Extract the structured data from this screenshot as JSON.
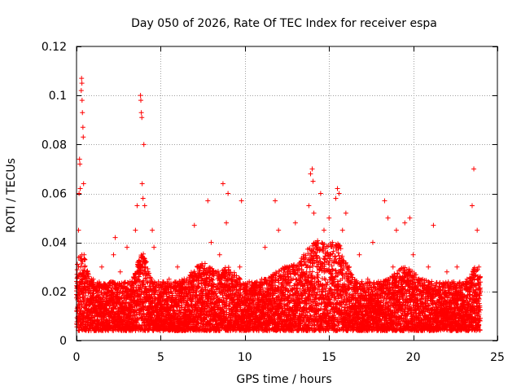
{
  "chart_data": {
    "type": "scatter",
    "title": "Day 050 of 2026, Rate Of TEC Index for receiver espa",
    "xlabel": "GPS time / hours",
    "ylabel": "ROTI / TECUs",
    "xlim": [
      0,
      25
    ],
    "ylim": [
      0,
      0.12
    ],
    "x_ticks": [
      0,
      5,
      10,
      15,
      20,
      25
    ],
    "x_tick_labels": [
      "0",
      "5",
      "10",
      "15",
      "20",
      "25"
    ],
    "y_ticks": [
      0,
      0.02,
      0.04,
      0.06,
      0.08,
      0.1,
      0.12
    ],
    "y_tick_labels": [
      "0",
      "0.02",
      "0.04",
      "0.06",
      "0.08",
      "0.1",
      "0.12"
    ],
    "grid": true,
    "marker": "+",
    "series": [
      {
        "name": "ROTI",
        "color": "#ff0000",
        "points": [
          [
            0.0,
            0.012
          ],
          [
            0.05,
            0.018
          ],
          [
            0.1,
            0.008
          ],
          [
            0.12,
            0.045
          ],
          [
            0.15,
            0.06
          ],
          [
            0.18,
            0.074
          ],
          [
            0.2,
            0.072
          ],
          [
            0.22,
            0.062
          ],
          [
            0.25,
            0.03
          ],
          [
            0.28,
            0.102
          ],
          [
            0.3,
            0.107
          ],
          [
            0.32,
            0.105
          ],
          [
            0.33,
            0.098
          ],
          [
            0.35,
            0.093
          ],
          [
            0.38,
            0.087
          ],
          [
            0.4,
            0.083
          ],
          [
            0.42,
            0.064
          ],
          [
            0.45,
            0.035
          ],
          [
            0.5,
            0.022
          ],
          [
            0.55,
            0.015
          ],
          [
            0.6,
            0.01
          ],
          [
            0.7,
            0.004
          ],
          [
            0.8,
            0.02
          ],
          [
            0.9,
            0.012
          ],
          [
            1.0,
            0.025
          ],
          [
            1.1,
            0.008
          ],
          [
            1.2,
            0.018
          ],
          [
            1.3,
            0.014
          ],
          [
            1.5,
            0.03
          ],
          [
            1.6,
            0.012
          ],
          [
            1.8,
            0.022
          ],
          [
            2.0,
            0.01
          ],
          [
            2.2,
            0.035
          ],
          [
            2.3,
            0.042
          ],
          [
            2.4,
            0.016
          ],
          [
            2.6,
            0.028
          ],
          [
            2.8,
            0.012
          ],
          [
            3.0,
            0.038
          ],
          [
            3.2,
            0.02
          ],
          [
            3.4,
            0.012
          ],
          [
            3.5,
            0.045
          ],
          [
            3.6,
            0.055
          ],
          [
            3.8,
            0.1
          ],
          [
            3.82,
            0.098
          ],
          [
            3.85,
            0.093
          ],
          [
            3.88,
            0.091
          ],
          [
            3.9,
            0.064
          ],
          [
            3.95,
            0.058
          ],
          [
            4.0,
            0.08
          ],
          [
            4.05,
            0.055
          ],
          [
            4.1,
            0.03
          ],
          [
            4.3,
            0.02
          ],
          [
            4.5,
            0.045
          ],
          [
            4.6,
            0.038
          ],
          [
            4.8,
            0.012
          ],
          [
            5.0,
            0.018
          ],
          [
            5.2,
            0.008
          ],
          [
            5.5,
            0.025
          ],
          [
            5.8,
            0.012
          ],
          [
            6.0,
            0.03
          ],
          [
            6.2,
            0.016
          ],
          [
            6.5,
            0.01
          ],
          [
            6.8,
            0.022
          ],
          [
            7.0,
            0.047
          ],
          [
            7.2,
            0.03
          ],
          [
            7.5,
            0.015
          ],
          [
            7.8,
            0.057
          ],
          [
            8.0,
            0.04
          ],
          [
            8.2,
            0.02
          ],
          [
            8.5,
            0.035
          ],
          [
            8.7,
            0.064
          ],
          [
            8.9,
            0.048
          ],
          [
            9.0,
            0.06
          ],
          [
            9.2,
            0.025
          ],
          [
            9.5,
            0.012
          ],
          [
            9.7,
            0.03
          ],
          [
            9.8,
            0.057
          ],
          [
            10.0,
            0.018
          ],
          [
            10.2,
            0.01
          ],
          [
            10.5,
            0.02
          ],
          [
            10.8,
            0.006
          ],
          [
            11.0,
            0.025
          ],
          [
            11.2,
            0.038
          ],
          [
            11.5,
            0.012
          ],
          [
            11.8,
            0.057
          ],
          [
            12.0,
            0.045
          ],
          [
            12.2,
            0.02
          ],
          [
            12.5,
            0.03
          ],
          [
            12.8,
            0.012
          ],
          [
            13.0,
            0.048
          ],
          [
            13.2,
            0.025
          ],
          [
            13.5,
            0.035
          ],
          [
            13.8,
            0.055
          ],
          [
            13.9,
            0.068
          ],
          [
            14.0,
            0.07
          ],
          [
            14.05,
            0.065
          ],
          [
            14.1,
            0.052
          ],
          [
            14.3,
            0.03
          ],
          [
            14.5,
            0.06
          ],
          [
            14.7,
            0.045
          ],
          [
            15.0,
            0.05
          ],
          [
            15.2,
            0.04
          ],
          [
            15.4,
            0.058
          ],
          [
            15.5,
            0.062
          ],
          [
            15.6,
            0.06
          ],
          [
            15.8,
            0.045
          ],
          [
            16.0,
            0.052
          ],
          [
            16.2,
            0.03
          ],
          [
            16.5,
            0.02
          ],
          [
            16.8,
            0.035
          ],
          [
            17.0,
            0.012
          ],
          [
            17.3,
            0.025
          ],
          [
            17.6,
            0.04
          ],
          [
            17.9,
            0.015
          ],
          [
            18.0,
            0.022
          ],
          [
            18.3,
            0.057
          ],
          [
            18.5,
            0.05
          ],
          [
            18.8,
            0.03
          ],
          [
            19.0,
            0.045
          ],
          [
            19.3,
            0.02
          ],
          [
            19.5,
            0.048
          ],
          [
            19.8,
            0.05
          ],
          [
            20.0,
            0.035
          ],
          [
            20.3,
            0.025
          ],
          [
            20.6,
            0.012
          ],
          [
            20.9,
            0.03
          ],
          [
            21.2,
            0.047
          ],
          [
            21.5,
            0.02
          ],
          [
            21.8,
            0.01
          ],
          [
            22.0,
            0.028
          ],
          [
            22.3,
            0.015
          ],
          [
            22.6,
            0.03
          ],
          [
            22.9,
            0.012
          ],
          [
            23.2,
            0.025
          ],
          [
            23.5,
            0.055
          ],
          [
            23.6,
            0.07
          ],
          [
            23.8,
            0.045
          ],
          [
            23.9,
            0.03
          ],
          [
            24.0,
            0.02
          ]
        ],
        "dense_band": {
          "x_range": [
            0,
            24
          ],
          "base_y": [
            0.004,
            0.024
          ],
          "bumps": [
            {
              "x": 0.3,
              "width": 0.4,
              "height": 0.012
            },
            {
              "x": 3.9,
              "width": 0.4,
              "height": 0.012
            },
            {
              "x": 7.5,
              "width": 0.8,
              "height": 0.008
            },
            {
              "x": 9.0,
              "width": 0.6,
              "height": 0.006
            },
            {
              "x": 12.5,
              "width": 1.0,
              "height": 0.006
            },
            {
              "x": 14.2,
              "width": 0.9,
              "height": 0.016
            },
            {
              "x": 15.5,
              "width": 0.7,
              "height": 0.014
            },
            {
              "x": 19.5,
              "width": 0.8,
              "height": 0.006
            },
            {
              "x": 23.7,
              "width": 0.3,
              "height": 0.006
            }
          ]
        }
      }
    ]
  }
}
